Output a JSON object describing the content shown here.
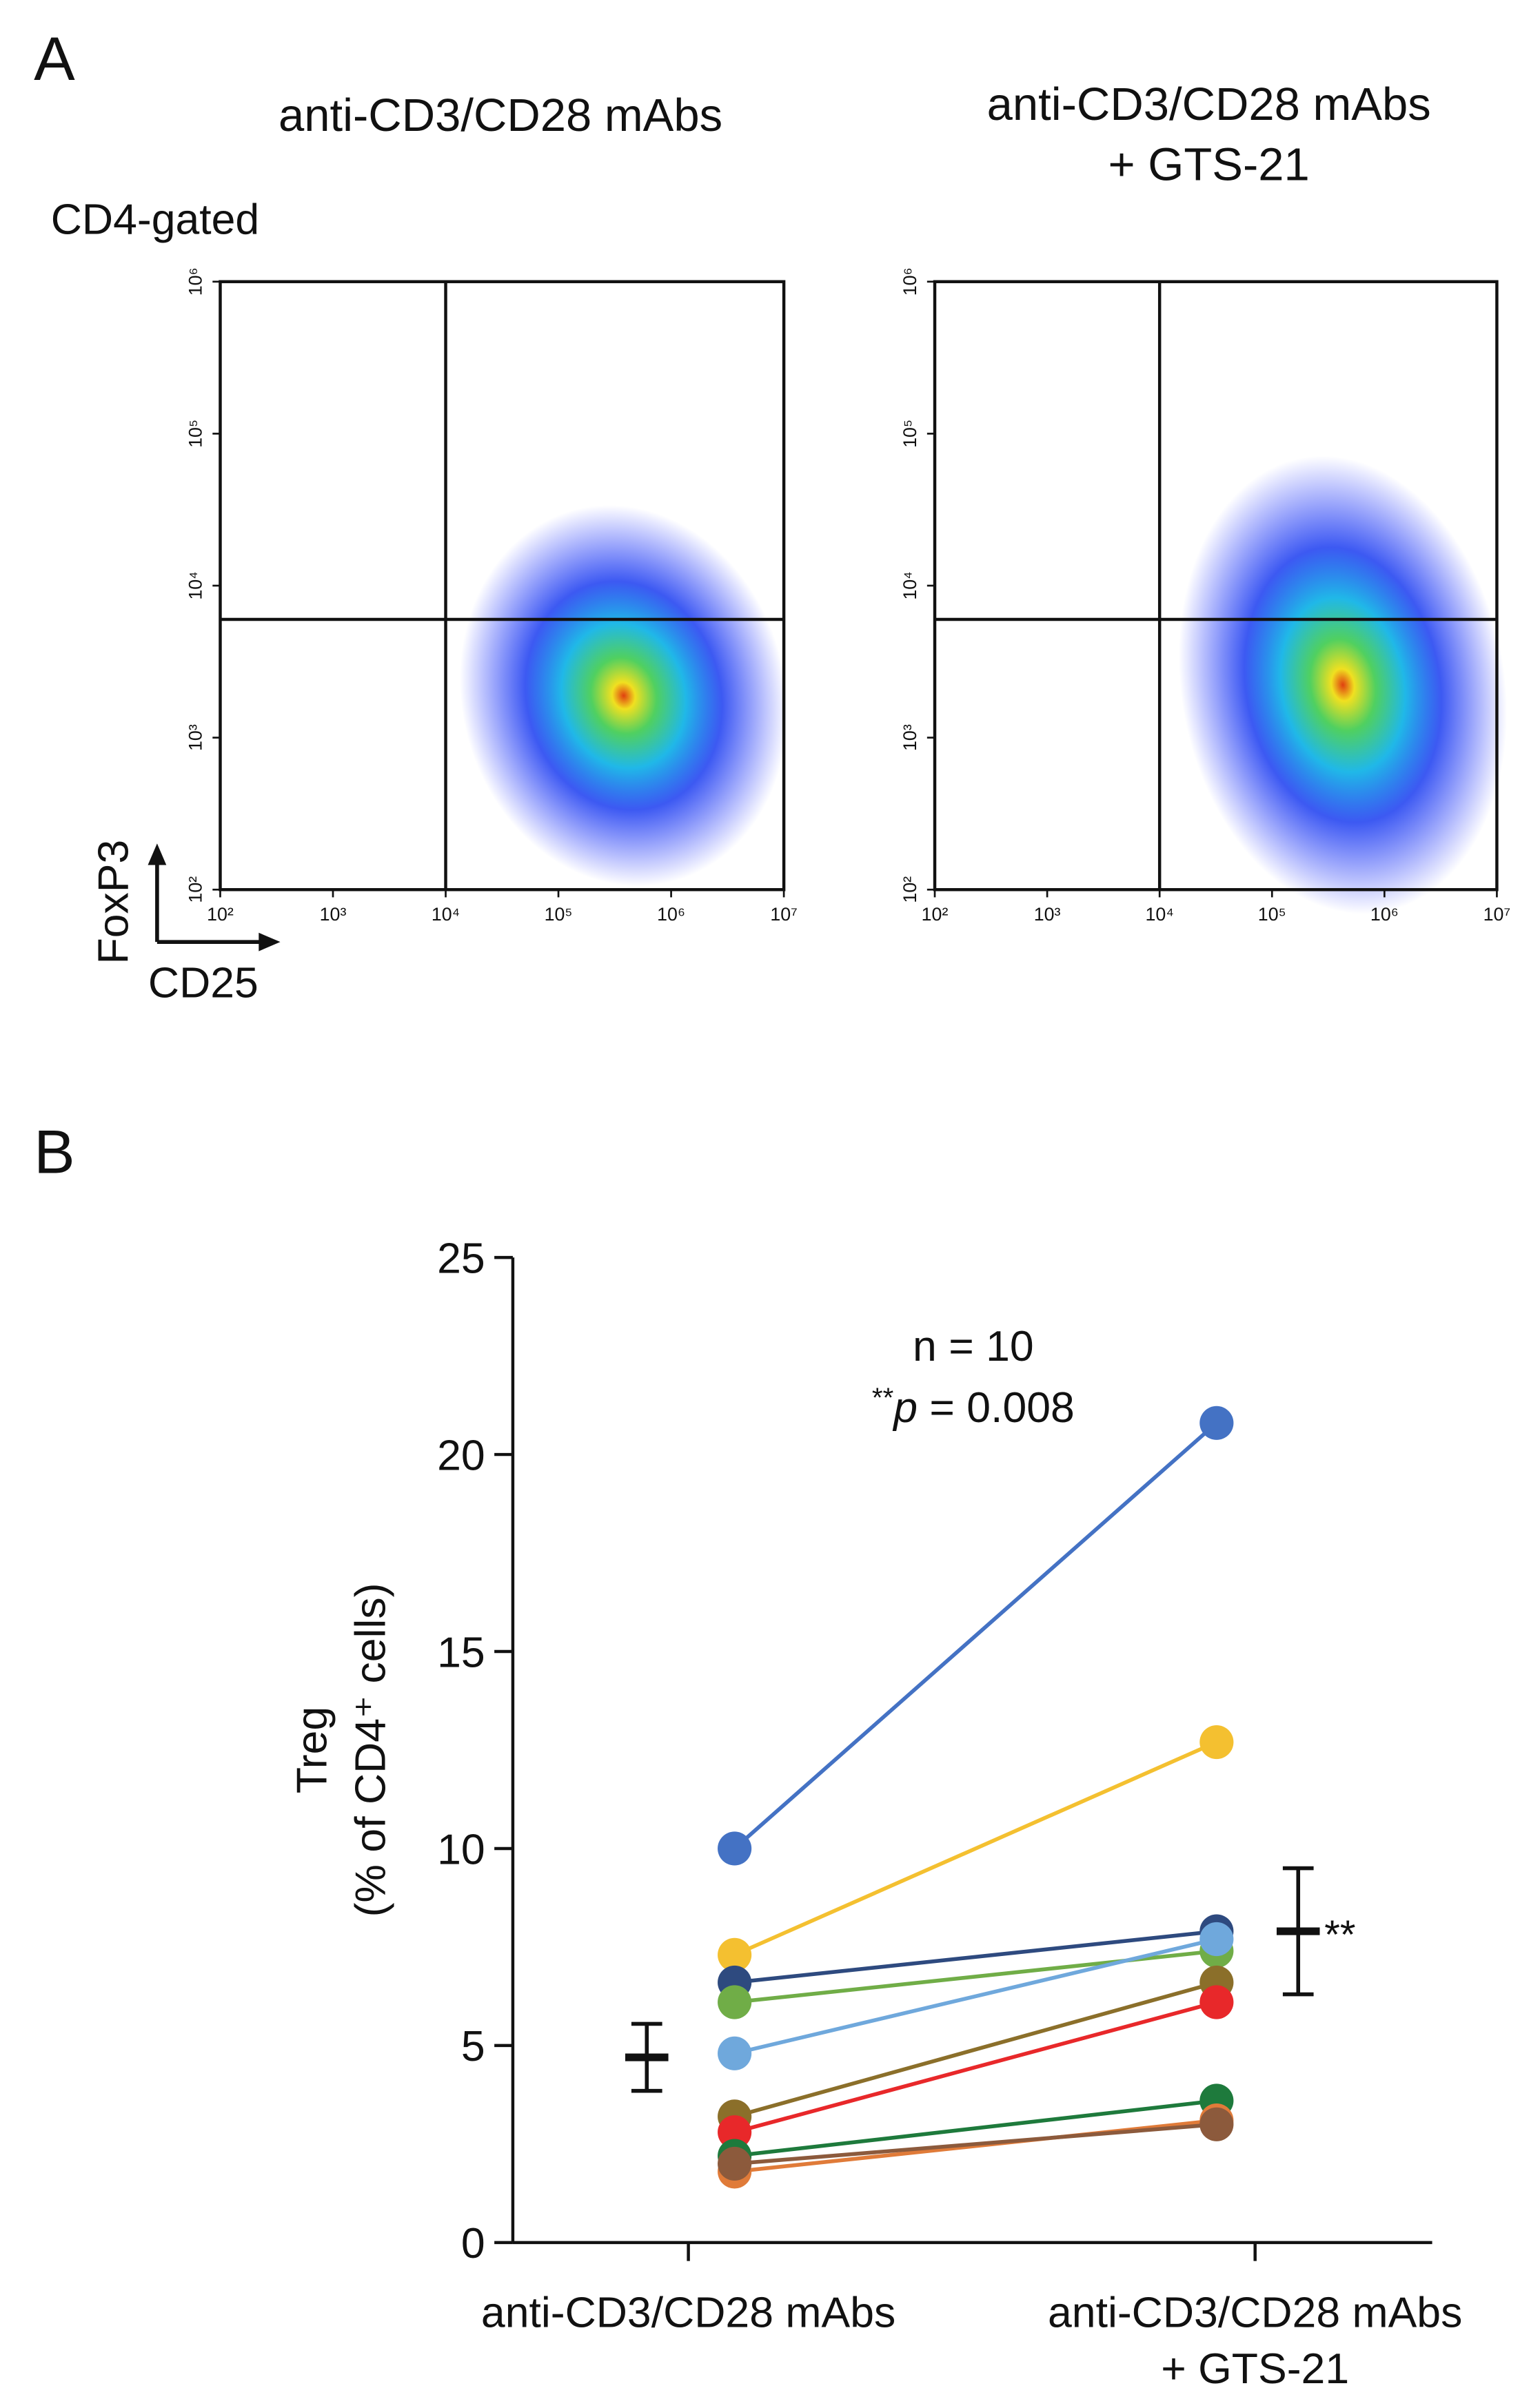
{
  "panel_labels": [
    "A",
    "B"
  ],
  "chart_data": [
    {
      "type": "flow",
      "title": "anti-CD3/CD28 mAbs",
      "gate_label": "CD4-gated",
      "x_label": "CD25",
      "y_label": "FoxP3",
      "log_scale": true,
      "xlim": [
        100,
        10000000
      ],
      "ylim": [
        100,
        1000000
      ],
      "xticks": [
        {
          "value": 100,
          "label": "10²"
        },
        {
          "value": 1000,
          "label": "10³"
        },
        {
          "value": 10000,
          "label": "10⁴"
        },
        {
          "value": 100000,
          "label": "10⁵"
        },
        {
          "value": 1000000,
          "label": "10⁶"
        },
        {
          "value": 10000000,
          "label": "10⁷"
        }
      ],
      "yticks": [
        {
          "value": 100,
          "label": "10²"
        },
        {
          "value": 1000,
          "label": "10³"
        },
        {
          "value": 10000,
          "label": "10⁴"
        },
        {
          "value": 100000,
          "label": "10⁵"
        },
        {
          "value": 1000000,
          "label": "10⁶"
        }
      ],
      "x_gate": 10000,
      "y_gate": 6000
    },
    {
      "type": "flow",
      "title": "anti-CD3/CD28 mAbs\n+ GTS-21",
      "log_scale": true,
      "xlim": [
        100,
        10000000
      ],
      "ylim": [
        100,
        1000000
      ],
      "xticks": [
        {
          "value": 100,
          "label": "10²"
        },
        {
          "value": 1000,
          "label": "10³"
        },
        {
          "value": 10000,
          "label": "10⁴"
        },
        {
          "value": 100000,
          "label": "10⁵"
        },
        {
          "value": 1000000,
          "label": "10⁶"
        },
        {
          "value": 10000000,
          "label": "10⁷"
        }
      ],
      "yticks": [
        {
          "value": 100,
          "label": "10²"
        },
        {
          "value": 1000,
          "label": "10³"
        },
        {
          "value": 10000,
          "label": "10⁴"
        },
        {
          "value": 100000,
          "label": "10⁵"
        },
        {
          "value": 1000000,
          "label": "10⁶"
        }
      ],
      "x_gate": 10000,
      "y_gate": 6000
    },
    {
      "type": "paired",
      "y_label": [
        "Treg",
        "(% of CD4⁺ cells)"
      ],
      "categories": [
        "anti-CD3/CD28 mAbs",
        "anti-CD3/CD28 mAbs\n+ GTS-21"
      ],
      "ylim": [
        0,
        25
      ],
      "yticks": [
        0,
        5,
        10,
        15,
        20,
        25
      ],
      "annotation": {
        "n": "n = 10",
        "stars": "**",
        "symbol": "p",
        "rest": " = 0.008"
      },
      "series": [
        {
          "color": "#4472c4",
          "values": [
            10,
            20.8
          ]
        },
        {
          "color": "#f4c030",
          "values": [
            7.3,
            12.7
          ]
        },
        {
          "color": "#2e4a7f",
          "values": [
            6.6,
            7.9
          ]
        },
        {
          "color": "#70ad47",
          "values": [
            6.1,
            7.4
          ]
        },
        {
          "color": "#6fa8dc",
          "values": [
            4.8,
            7.7
          ]
        },
        {
          "color": "#8b6f2a",
          "values": [
            3.2,
            6.6
          ]
        },
        {
          "color": "#e8282a",
          "values": [
            2.8,
            6.1
          ]
        },
        {
          "color": "#1e7a3c",
          "values": [
            2.2,
            3.6
          ]
        },
        {
          "color": "#e07b39",
          "values": [
            1.8,
            3.1
          ]
        },
        {
          "color": "#8c5a3c",
          "values": [
            2.0,
            3.0
          ]
        }
      ],
      "mean": {
        "values": [
          4.7,
          7.9
        ],
        "errors": [
          0.85,
          1.6
        ],
        "significance": "**"
      }
    }
  ]
}
